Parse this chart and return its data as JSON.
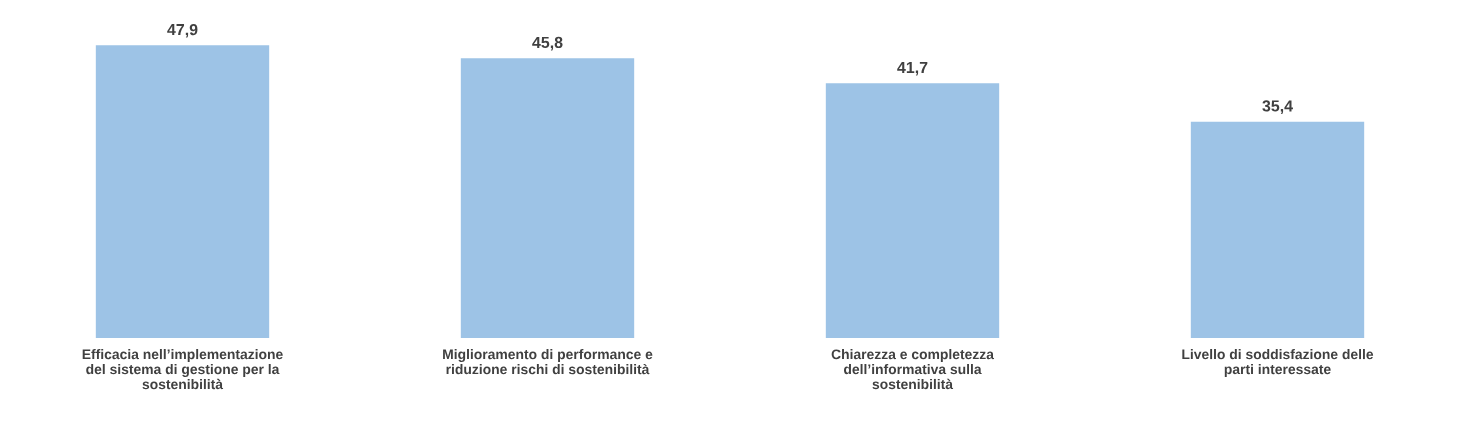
{
  "chart_data": {
    "type": "bar",
    "categories": [
      "Efficacia nell’implementazione\ndel sistema di gestione per la\nsostenibilità",
      "Miglioramento di performance e\nriduzione rischi di sostenibilità",
      "Chiarezza e completezza\ndell’informativa sulla\nsostenibilità",
      "Livello di soddisfazione delle\nparti interessate"
    ],
    "values": [
      47.9,
      45.8,
      41.7,
      35.4
    ],
    "color": "#9dc3e6",
    "value_labels": [
      "47,9",
      "45,8",
      "41,7",
      "35,4"
    ],
    "grid": false,
    "legend": false
  }
}
